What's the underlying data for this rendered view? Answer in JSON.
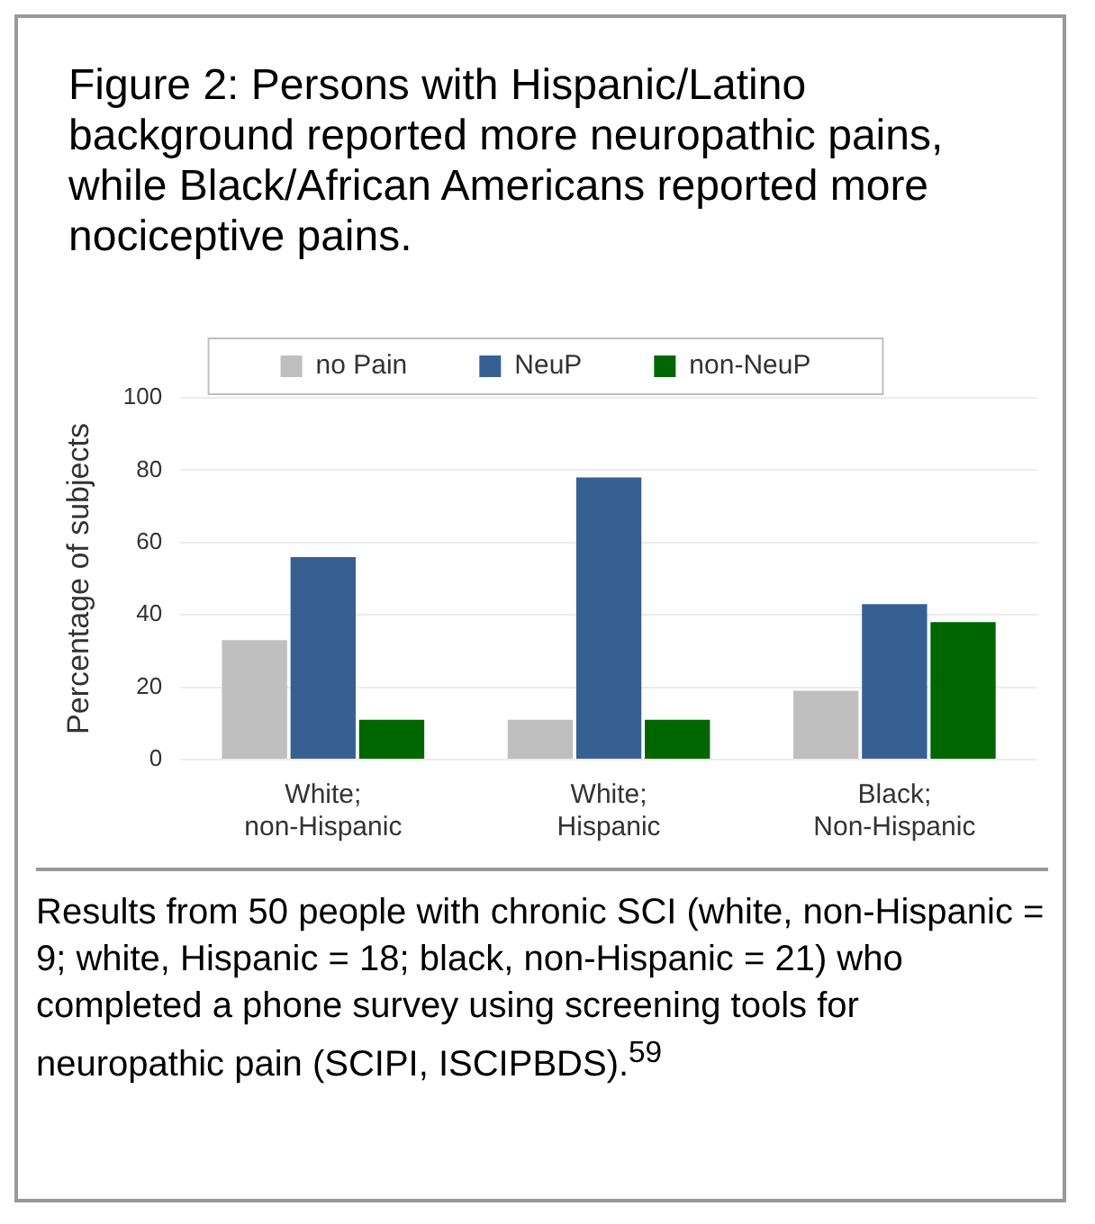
{
  "chart_data": {
    "type": "bar",
    "title": "Figure 2: Persons with Hispanic/Latino background reported more neuropathic pains, while Black/African Americans reported more nociceptive pains.",
    "ylabel": "Percentage of subjects",
    "categories": [
      "White; non-Hispanic",
      "White; Hispanic",
      "Black; Non-Hispanic"
    ],
    "series": [
      {
        "name": "no Pain",
        "color": "#bfbfbf",
        "values": [
          33,
          11,
          19
        ]
      },
      {
        "name": "NeuP",
        "color": "#376092",
        "values": [
          56,
          78,
          43
        ]
      },
      {
        "name": "non-NeuP",
        "color": "#006600",
        "values": [
          11,
          11,
          38
        ]
      }
    ],
    "ylim": [
      0,
      100
    ],
    "yticks": [
      0,
      20,
      40,
      60,
      80,
      100
    ],
    "grid": "y",
    "legend": "top",
    "annotations": [
      "Results from 50 people with chronic SCI (white, non-Hispanic = 9; white, Hispanic = 18; black, non-Hispanic = 21) who completed a phone survey using screening tools for neuropathic pain (SCIPI, ISCIPBDS).$^{59}$"
    ]
  }
}
